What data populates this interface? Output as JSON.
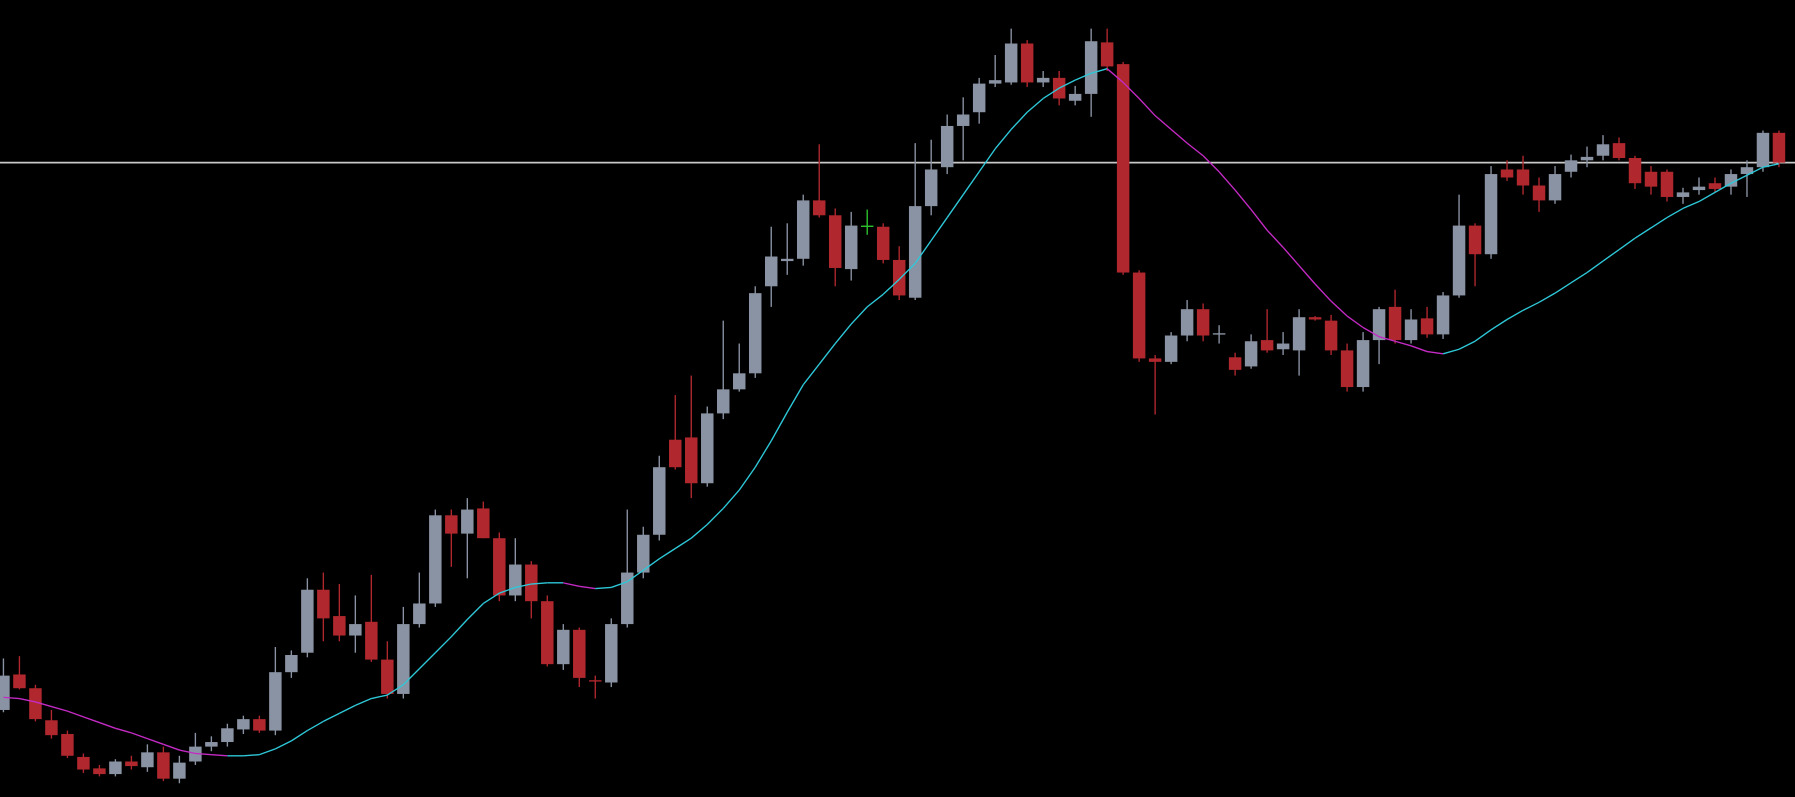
{
  "chart_data": {
    "type": "candlestick",
    "open": [
      80,
      111,
      99,
      71,
      59,
      39,
      29,
      24,
      35,
      30,
      43,
      20,
      35,
      48,
      52,
      63,
      72,
      62,
      113,
      130,
      185,
      162,
      145,
      157,
      124,
      94,
      155,
      173,
      250,
      234,
      256,
      230,
      180,
      207,
      175,
      120,
      150,
      106,
      104,
      155,
      200,
      233,
      316,
      318,
      278,
      339,
      360,
      374,
      450,
      472,
      474,
      525,
      512,
      465,
      503,
      502,
      473,
      440,
      520,
      554,
      590,
      602,
      627,
      628,
      662,
      628,
      632,
      612,
      618,
      663,
      644,
      462,
      387,
      384,
      407,
      430,
      408,
      388,
      380,
      403,
      395,
      394,
      423,
      420,
      394,
      362,
      403,
      432,
      403,
      422,
      408,
      442,
      503,
      478,
      552,
      552,
      538,
      525,
      550,
      560,
      564,
      575,
      562,
      550,
      550,
      528,
      534,
      540,
      537,
      548,
      554,
      584
    ],
    "high": [
      125,
      127,
      102,
      80,
      62,
      42,
      32,
      37,
      40,
      50,
      48,
      40,
      60,
      57,
      68,
      75,
      75,
      135,
      132,
      195,
      200,
      190,
      180,
      198,
      140,
      170,
      200,
      255,
      255,
      265,
      262,
      235,
      230,
      210,
      180,
      155,
      152,
      110,
      160,
      255,
      240,
      302,
      355,
      372,
      345,
      420,
      400,
      450,
      502,
      505,
      530,
      574,
      518,
      515,
      517,
      505,
      485,
      575,
      578,
      600,
      615,
      632,
      652,
      675,
      665,
      638,
      638,
      625,
      675,
      675,
      646,
      464,
      390,
      410,
      438,
      435,
      416,
      392,
      408,
      430,
      410,
      430,
      424,
      425,
      400,
      410,
      432,
      447,
      430,
      432,
      445,
      530,
      505,
      555,
      560,
      564,
      545,
      555,
      565,
      572,
      582,
      580,
      564,
      555,
      552,
      536,
      545,
      545,
      552,
      560,
      586,
      586
    ],
    "low": [
      78,
      98,
      70,
      55,
      38,
      25,
      22,
      22,
      28,
      26,
      18,
      16,
      32,
      44,
      48,
      59,
      60,
      58,
      108,
      126,
      140,
      140,
      130,
      122,
      90,
      90,
      152,
      170,
      205,
      195,
      230,
      175,
      175,
      160,
      118,
      115,
      100,
      90,
      100,
      152,
      195,
      228,
      290,
      265,
      275,
      334,
      358,
      370,
      432,
      460,
      468,
      510,
      450,
      455,
      495,
      470,
      438,
      438,
      512,
      548,
      560,
      592,
      624,
      626,
      624,
      624,
      608,
      608,
      598,
      638,
      460,
      384,
      338,
      382,
      402,
      402,
      400,
      372,
      378,
      392,
      390,
      372,
      420,
      390,
      358,
      358,
      382,
      400,
      400,
      405,
      404,
      440,
      450,
      474,
      542,
      530,
      515,
      522,
      545,
      554,
      560,
      560,
      535,
      530,
      524,
      522,
      530,
      532,
      530,
      528,
      550,
      554
    ],
    "close": [
      110,
      99,
      72,
      58,
      40,
      28,
      24,
      35,
      31,
      43,
      20,
      34,
      48,
      52,
      64,
      72,
      62,
      113,
      128,
      185,
      160,
      145,
      155,
      124,
      94,
      155,
      173,
      250,
      234,
      255,
      230,
      180,
      207,
      175,
      120,
      150,
      108,
      105,
      155,
      200,
      233,
      292,
      292,
      278,
      339,
      360,
      374,
      444,
      476,
      474,
      525,
      512,
      466,
      503,
      503,
      473,
      442,
      520,
      552,
      590,
      600,
      627,
      630,
      662,
      628,
      632,
      614,
      618,
      664,
      642,
      462,
      387,
      384,
      407,
      430,
      407,
      409,
      377,
      402,
      394,
      400,
      423,
      421,
      394,
      362,
      403,
      430,
      403,
      421,
      408,
      442,
      503,
      478,
      548,
      545,
      538,
      525,
      548,
      560,
      563,
      574,
      562,
      540,
      537,
      528,
      532,
      537,
      535,
      548,
      554,
      584,
      558
    ],
    "ma": [
      91,
      90,
      87,
      83,
      79,
      74,
      69,
      64,
      60,
      55,
      50,
      45,
      42,
      41,
      40,
      40,
      41,
      46,
      53,
      62,
      70,
      77,
      84,
      90,
      93,
      102,
      116,
      130,
      144,
      159,
      173,
      182,
      187,
      190,
      191,
      191,
      188,
      186,
      187,
      192,
      202,
      212,
      221,
      230,
      242,
      256,
      272,
      292,
      315,
      340,
      364,
      382,
      400,
      417,
      432,
      443,
      456,
      470,
      490,
      510,
      530,
      550,
      570,
      587,
      602,
      614,
      623,
      630,
      636,
      640,
      628,
      614,
      599,
      587,
      575,
      564,
      550,
      534,
      517,
      499,
      484,
      468,
      452,
      437,
      424,
      414,
      406,
      402,
      398,
      393,
      391,
      395,
      402,
      412,
      421,
      429,
      436,
      444,
      453,
      462,
      472,
      482,
      492,
      501,
      510,
      518,
      524,
      532,
      540,
      547,
      554,
      557
    ],
    "up_color": "#8a93a3",
    "down_color": "#b0282e",
    "doji_color": "#2ec52e",
    "ma_up_color": "#2ec8d8",
    "ma_down_color": "#c42ac4",
    "hline": 558,
    "hline_color": "#c8c8c8",
    "ylim": [
      4,
      700
    ]
  }
}
